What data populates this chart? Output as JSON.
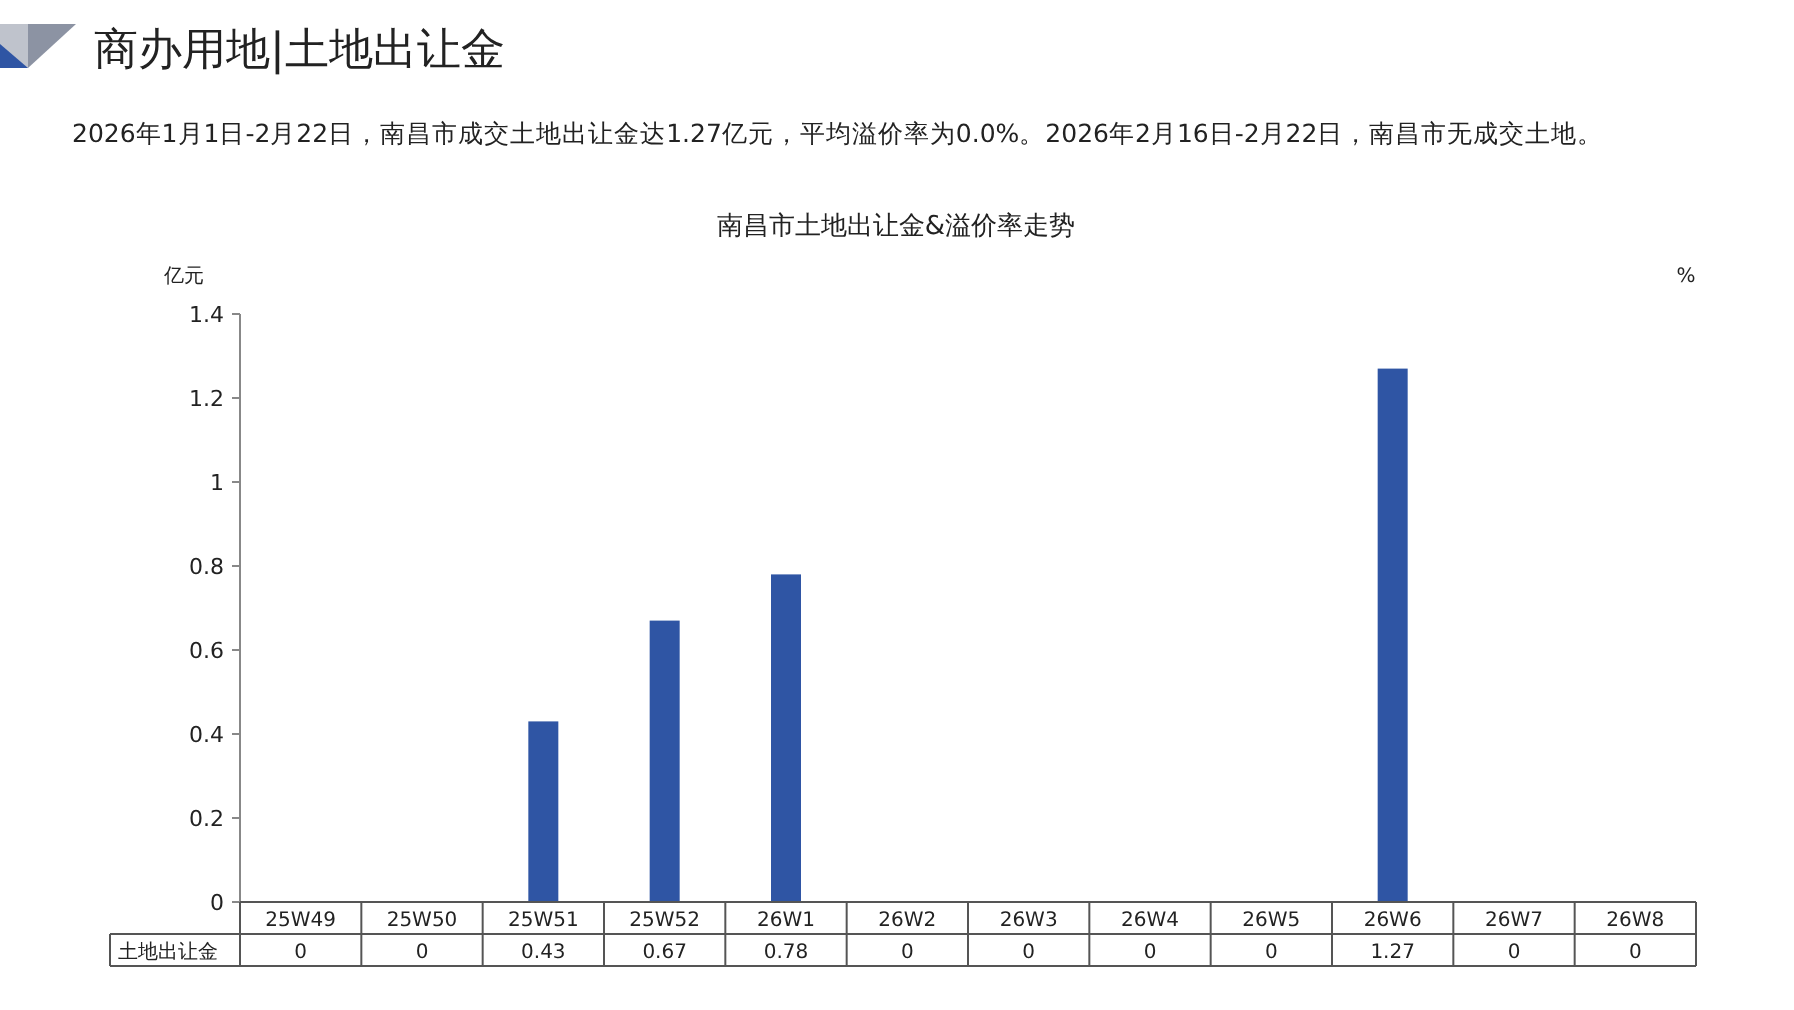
{
  "chart_data": {
    "type": "bar",
    "title": "商办用地|土地出让金",
    "annotations": [
      "2026年1月1日-2月22日，南昌市成交土地出让金达1.27亿元，平均溢价率为0.0%。2026年2月16日-2月22日，南昌市无成交土地。"
    ],
    "subtitle": "南昌市土地出让金&溢价率走势",
    "categories": [
      "25W49",
      "25W50",
      "25W51",
      "25W52",
      "26W1",
      "26W2",
      "26W3",
      "26W4",
      "26W5",
      "26W6",
      "26W7",
      "26W8"
    ],
    "series": [
      {
        "name": "土地出让金",
        "color": "#2f55a4",
        "values": [
          0,
          0,
          0.43,
          0.67,
          0.78,
          0,
          0,
          0,
          0,
          1.27,
          0,
          0
        ]
      }
    ],
    "ylabel": "亿元",
    "y2label": "%",
    "ylim": [
      0,
      1.4
    ],
    "yticks": [
      0,
      0.2,
      0.4,
      0.6,
      0.8,
      1,
      1.2,
      1.4
    ],
    "data_labels": true
  }
}
